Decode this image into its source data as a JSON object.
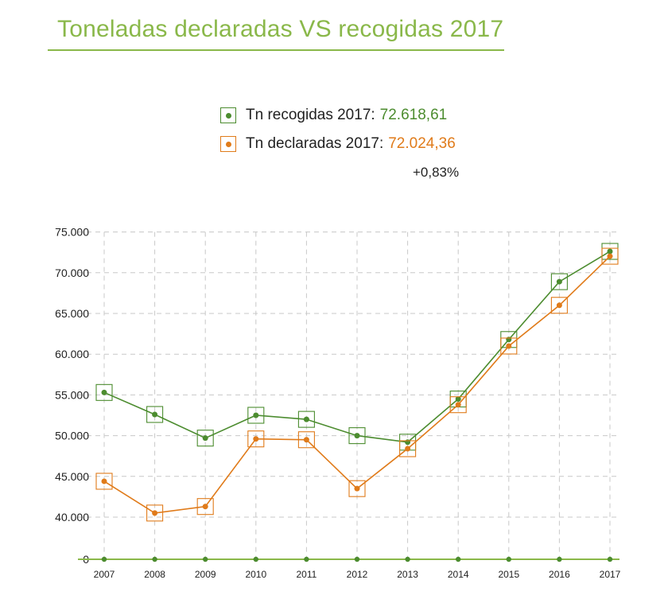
{
  "title": "Toneladas declaradas VS recogidas 2017",
  "legend": {
    "recogidas": {
      "label": "Tn recogidas 2017:",
      "value": "72.618,61",
      "color": "#4c8c2f"
    },
    "declaradas": {
      "label": "Tn declaradas 2017:",
      "value": "72.024,36",
      "color": "#e07b1a"
    }
  },
  "difference": "+0,83%",
  "colors": {
    "title": "#8ab84a",
    "grid": "#c8c8c8",
    "baseline": "#8ab84a"
  },
  "chart_data": {
    "type": "line",
    "x": [
      "2007",
      "2008",
      "2009",
      "2010",
      "2011",
      "2012",
      "2013",
      "2014",
      "2015",
      "2016",
      "2017"
    ],
    "ylim": [
      0,
      75000
    ],
    "y_axis_break": [
      0,
      40000
    ],
    "yticks": [
      0,
      40000,
      45000,
      50000,
      55000,
      60000,
      65000,
      70000,
      75000
    ],
    "ytick_labels": [
      "0",
      "40.000",
      "45.000",
      "50.000",
      "55.000",
      "60.000",
      "65.000",
      "70.000",
      "75.000"
    ],
    "grid": true,
    "legend_position": "top",
    "series": [
      {
        "name": "Tn recogidas 2017",
        "color": "#4c8c2f",
        "values": [
          55300,
          52600,
          49700,
          52500,
          52000,
          50000,
          49200,
          54500,
          61800,
          68900,
          72618.61
        ]
      },
      {
        "name": "Tn declaradas 2017",
        "color": "#e07b1a",
        "values": [
          44400,
          40500,
          41300,
          49600,
          49500,
          43500,
          48400,
          53800,
          61000,
          66000,
          72024.36
        ]
      }
    ]
  }
}
